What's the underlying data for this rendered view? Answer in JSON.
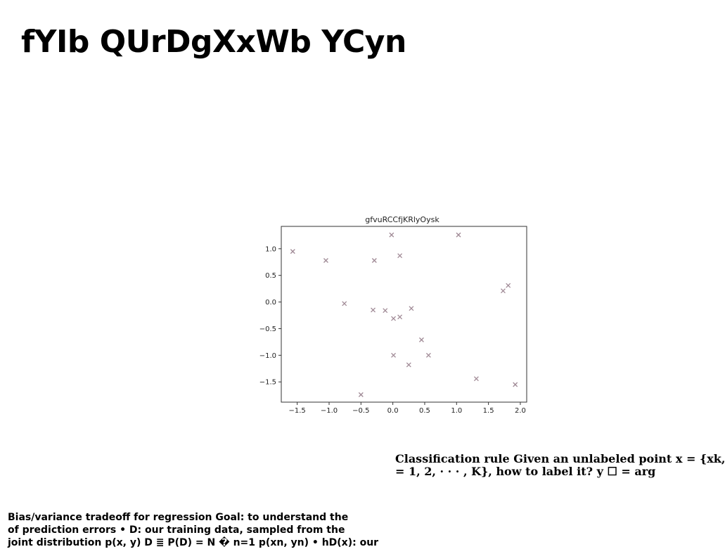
{
  "title": "fYIb QUrDgXxWb YCyn",
  "chart_data": {
    "type": "scatter",
    "title": "gfvuRCCfjKRlyOysk",
    "xlabel": "",
    "ylabel": "",
    "xlim": [
      -1.75,
      2.1
    ],
    "ylim": [
      -1.88,
      1.42
    ],
    "xticks": [
      -1.5,
      -1.0,
      -0.5,
      0.0,
      0.5,
      1.0,
      1.5,
      2.0
    ],
    "xtick_labels": [
      "−1.5",
      "−1.0",
      "−0.5",
      "0.0",
      "0.5",
      "1.0",
      "1.5",
      "2.0"
    ],
    "yticks": [
      1.0,
      0.5,
      0.0,
      -0.5,
      -1.0,
      -1.5
    ],
    "ytick_labels": [
      "1.0",
      "0.5",
      "0.0",
      "−0.5",
      "−1.0",
      "−1.5"
    ],
    "marker": "x",
    "color": "#a08a96",
    "grid": false,
    "points": [
      {
        "x": -1.57,
        "y": 0.95
      },
      {
        "x": -1.05,
        "y": 0.78
      },
      {
        "x": -0.76,
        "y": -0.03
      },
      {
        "x": -0.29,
        "y": 0.78
      },
      {
        "x": -0.31,
        "y": -0.15
      },
      {
        "x": -0.12,
        "y": -0.16
      },
      {
        "x": -0.02,
        "y": 1.26
      },
      {
        "x": 0.01,
        "y": -0.31
      },
      {
        "x": 0.11,
        "y": 0.87
      },
      {
        "x": 0.11,
        "y": -0.28
      },
      {
        "x": 0.29,
        "y": -0.12
      },
      {
        "x": 0.45,
        "y": -0.71
      },
      {
        "x": 0.01,
        "y": -1.0
      },
      {
        "x": 0.25,
        "y": -1.18
      },
      {
        "x": 0.56,
        "y": -1.0
      },
      {
        "x": -0.5,
        "y": -1.74
      },
      {
        "x": 1.03,
        "y": 1.26
      },
      {
        "x": 1.31,
        "y": -1.44
      },
      {
        "x": 1.73,
        "y": 0.21
      },
      {
        "x": 1.81,
        "y": 0.31
      },
      {
        "x": 1.92,
        "y": -1.55
      }
    ]
  },
  "text_blocks": {
    "classification_rule": "Classification rule Given an unlabeled point x = {xk,\n= 1, 2, · · · , K}, how to label it? y ☐ = arg",
    "bias_variance": "Bias/variance tradeoff for regression Goal: to understand the\nof prediction errors • D: our training data, sampled from the\njoint distribution p(x, y) D ≣ P(D) = N � n=1 p(xn, yn) • hD(x): our"
  }
}
